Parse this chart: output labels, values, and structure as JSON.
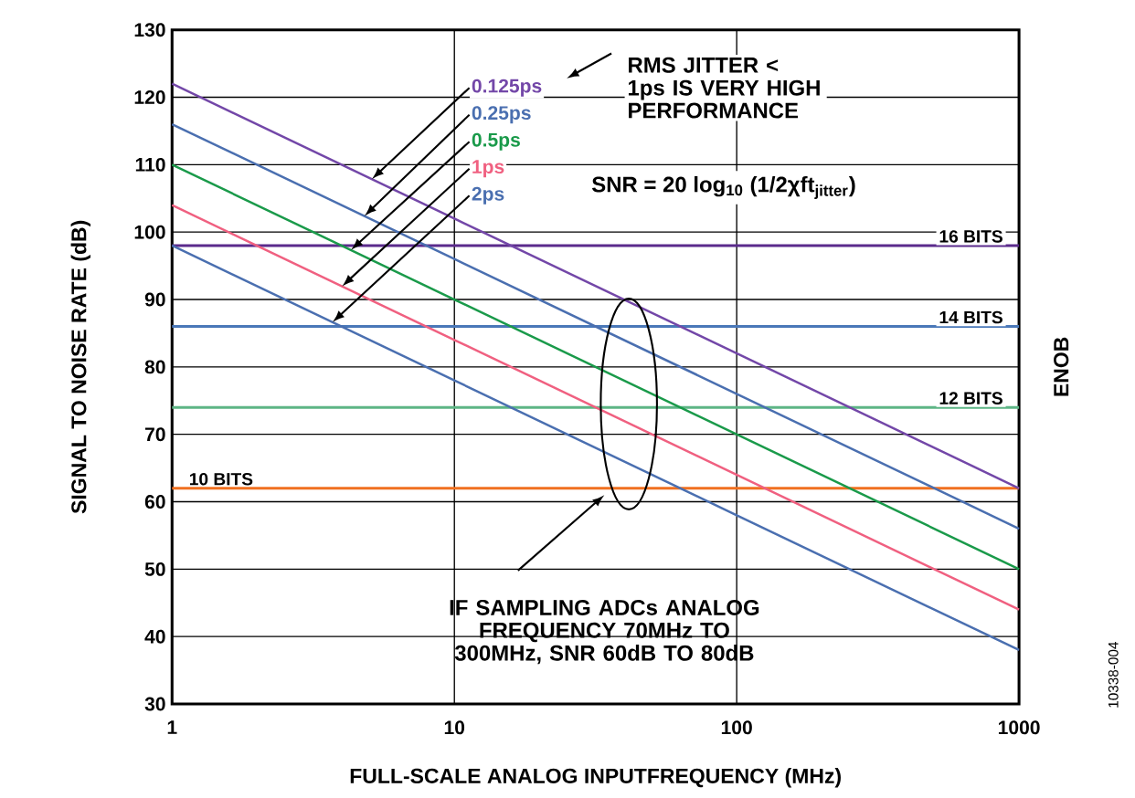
{
  "chart_data": {
    "type": "line",
    "xlabel": "FULL-SCALE ANALOG INPUTFREQUENCY (MHz)",
    "ylabel": "SIGNAL TO NOISE RATE (dB)",
    "y2label": "ENOB",
    "log": "x",
    "xlim": [
      1,
      1000
    ],
    "ylim": [
      30,
      130
    ],
    "xticks": [
      1,
      10,
      100,
      1000
    ],
    "yticks": [
      30,
      40,
      50,
      60,
      70,
      80,
      90,
      100,
      110,
      120,
      130
    ],
    "grid": true,
    "legend": false,
    "marker": "none",
    "line_style": "solid",
    "series": [
      {
        "name": "0.125ps",
        "color": "#7347a8",
        "x": [
          1,
          10,
          100,
          1000
        ],
        "values": [
          122,
          102,
          82,
          62
        ]
      },
      {
        "name": "0.25ps",
        "color": "#4a6fb0",
        "x": [
          1,
          10,
          100,
          1000
        ],
        "values": [
          116,
          96,
          76,
          56
        ]
      },
      {
        "name": "0.5ps",
        "color": "#1a9a4a",
        "x": [
          1,
          10,
          100,
          1000
        ],
        "values": [
          110,
          90,
          70,
          50
        ]
      },
      {
        "name": "1ps",
        "color": "#f06080",
        "x": [
          1,
          10,
          100,
          1000
        ],
        "values": [
          104,
          84,
          64,
          44
        ]
      },
      {
        "name": "2ps",
        "color": "#4a6fb0",
        "x": [
          1,
          10,
          100,
          1000
        ],
        "values": [
          98,
          78,
          58,
          38
        ]
      }
    ],
    "ref_lines": [
      {
        "axis": "y",
        "value": 98,
        "label": "16 BITS",
        "color": "#5b2a8c"
      },
      {
        "axis": "y",
        "value": 86,
        "label": "14 BITS",
        "color": "#4a78b8"
      },
      {
        "axis": "y",
        "value": 74,
        "label": "12 BITS",
        "color": "#5db585"
      },
      {
        "axis": "y",
        "value": 62,
        "label": "10 BITS",
        "color": "#f07020"
      }
    ],
    "annotations": [
      "RMS JITTER < 1ps IS VERY HIGH PERFORMANCE",
      "SNR = 20 log$_{10}$ (1/2χft$_{jitter}$)",
      "IF SAMPLING ADCs ANALOG FREQUENCY 70MHz TO 300MHz, SNR 60dB TO 80dB",
      "10338-004"
    ]
  }
}
